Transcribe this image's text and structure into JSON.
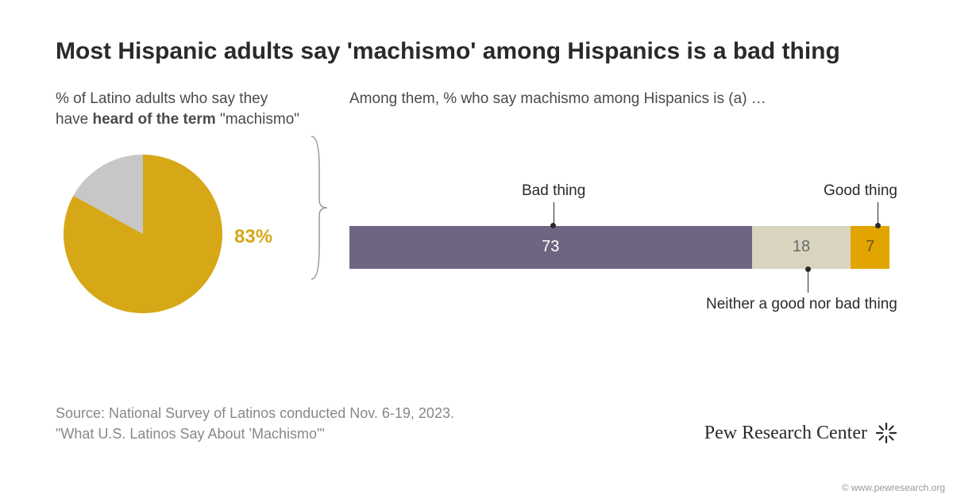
{
  "title": "Most Hispanic adults say 'machismo' among Hispanics is a bad thing",
  "left": {
    "subtitle_pre": "% of Latino adults who say they have ",
    "subtitle_bold": "heard of the term",
    "subtitle_post": " \"machismo\"",
    "pie": {
      "value": 83,
      "label": "83%",
      "primary_color": "#d6a817",
      "remainder_color": "#c7c7c7",
      "radius": 100
    }
  },
  "right": {
    "subtitle": "Among them, % who say machismo among Hispanics is (a) …",
    "bar": {
      "segments": [
        {
          "label": "Bad thing",
          "value": 73,
          "color": "#6e6583",
          "text_color": "#ffffff",
          "annotation_position": "top"
        },
        {
          "label": "Neither a good nor bad thing",
          "value": 18,
          "color": "#d9d4c0",
          "text_color": "#6a6a6a",
          "annotation_position": "bottom"
        },
        {
          "label": "Good thing",
          "value": 7,
          "color": "#e2a500",
          "text_color": "#6a5a20",
          "annotation_position": "top"
        }
      ],
      "height": 54,
      "font_size": 20
    }
  },
  "footer": {
    "line1": "Source: National Survey of Latinos conducted Nov. 6-19, 2023.",
    "line2": "\"What U.S. Latinos Say About 'Machismo'\""
  },
  "brand": "Pew Research Center",
  "credit": "© www.pewresearch.org",
  "colors": {
    "background": "#ffffff",
    "title": "#2a2a2a",
    "subtitle": "#4a4a4a",
    "footer": "#888888",
    "brace": "#888888"
  }
}
